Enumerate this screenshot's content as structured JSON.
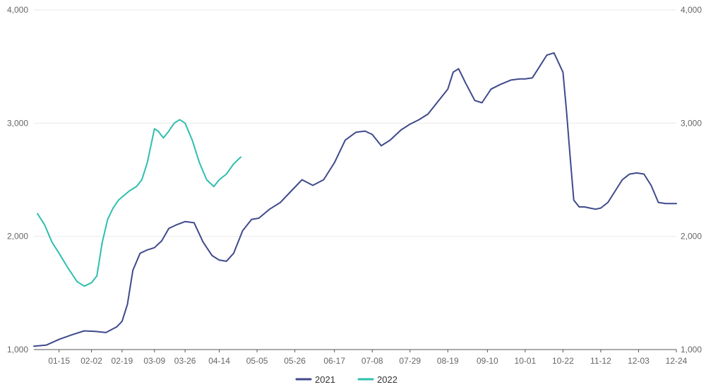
{
  "chart_data": {
    "type": "line",
    "ylim": [
      1000,
      4000
    ],
    "y_ticks": [
      "1,000",
      "2,000",
      "3,000",
      "4,000"
    ],
    "x_ticks": [
      "01-15",
      "02-02",
      "02-19",
      "03-09",
      "03-26",
      "04-14",
      "05-05",
      "05-26",
      "06-17",
      "07-08",
      "07-29",
      "08-19",
      "09-10",
      "10-01",
      "10-22",
      "11-12",
      "12-03",
      "12-24"
    ],
    "grid": true,
    "legend_position": "bottom",
    "series": [
      {
        "name": "2021",
        "color": "#3f4a8c",
        "x": [
          "01-01",
          "01-08",
          "01-15",
          "01-22",
          "01-29",
          "02-04",
          "02-10",
          "02-16",
          "02-19",
          "02-22",
          "02-25",
          "03-01",
          "03-05",
          "03-09",
          "03-13",
          "03-17",
          "03-21",
          "03-26",
          "03-31",
          "04-05",
          "04-10",
          "04-14",
          "04-18",
          "04-22",
          "04-27",
          "05-02",
          "05-06",
          "05-12",
          "05-18",
          "05-24",
          "05-30",
          "06-05",
          "06-11",
          "06-17",
          "06-23",
          "06-29",
          "07-04",
          "07-08",
          "07-13",
          "07-18",
          "07-24",
          "07-29",
          "08-03",
          "08-08",
          "08-14",
          "08-19",
          "08-22",
          "08-25",
          "08-29",
          "09-03",
          "09-07",
          "09-12",
          "09-17",
          "09-23",
          "09-28",
          "10-01",
          "10-05",
          "10-09",
          "10-13",
          "10-17",
          "10-22",
          "10-24",
          "10-26",
          "10-28",
          "10-31",
          "11-03",
          "11-06",
          "11-09",
          "11-12",
          "11-16",
          "11-20",
          "11-24",
          "11-28",
          "12-02",
          "12-06",
          "12-10",
          "12-14",
          "12-18",
          "12-22",
          "12-24"
        ],
        "values": [
          1030,
          1040,
          1090,
          1130,
          1165,
          1160,
          1150,
          1200,
          1250,
          1400,
          1700,
          1850,
          1880,
          1900,
          1960,
          2070,
          2100,
          2130,
          2120,
          1950,
          1830,
          1790,
          1780,
          1850,
          2050,
          2150,
          2160,
          2240,
          2300,
          2400,
          2500,
          2450,
          2500,
          2650,
          2850,
          2920,
          2930,
          2900,
          2800,
          2850,
          2940,
          2990,
          3030,
          3080,
          3200,
          3300,
          3450,
          3480,
          3350,
          3200,
          3180,
          3300,
          3340,
          3380,
          3390,
          3390,
          3400,
          3500,
          3600,
          3620,
          3450,
          3100,
          2700,
          2320,
          2260,
          2260,
          2250,
          2240,
          2250,
          2300,
          2400,
          2500,
          2550,
          2560,
          2550,
          2450,
          2300,
          2290,
          2290,
          2290
        ]
      },
      {
        "name": "2022",
        "color": "#2ebfae",
        "x": [
          "01-03",
          "01-07",
          "01-11",
          "01-15",
          "01-20",
          "01-25",
          "01-29",
          "02-02",
          "02-05",
          "02-08",
          "02-11",
          "02-14",
          "02-17",
          "02-20",
          "02-23",
          "02-27",
          "03-02",
          "03-05",
          "03-07",
          "03-09",
          "03-11",
          "03-14",
          "03-17",
          "03-20",
          "03-23",
          "03-26",
          "03-30",
          "04-03",
          "04-07",
          "04-11",
          "04-14",
          "04-18",
          "04-22",
          "04-26"
        ],
        "values": [
          2200,
          2100,
          1950,
          1850,
          1720,
          1600,
          1560,
          1590,
          1650,
          1950,
          2150,
          2250,
          2320,
          2360,
          2400,
          2440,
          2500,
          2650,
          2800,
          2950,
          2930,
          2870,
          2930,
          3000,
          3030,
          3000,
          2850,
          2650,
          2500,
          2440,
          2500,
          2550,
          2640,
          2700
        ]
      }
    ]
  }
}
